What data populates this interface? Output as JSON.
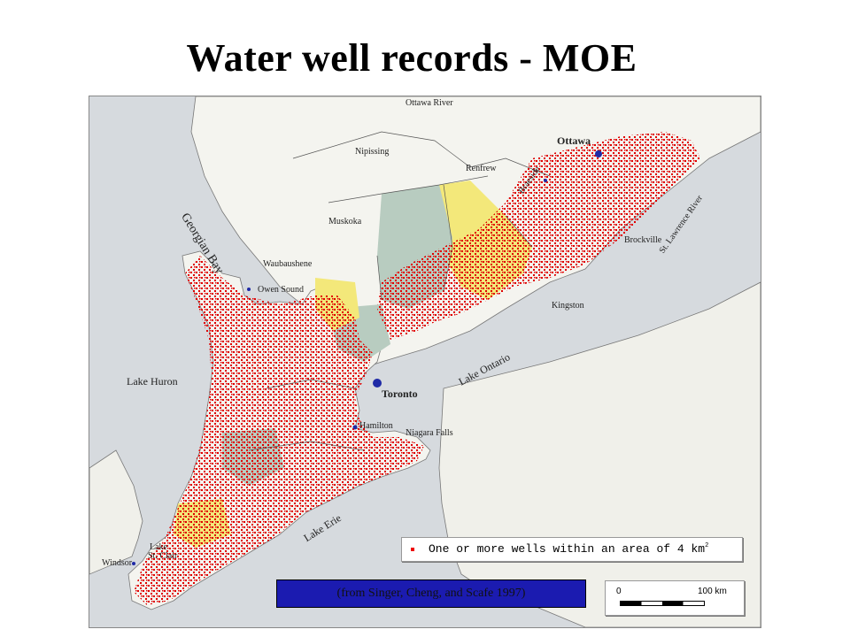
{
  "title": "Water well records - MOE",
  "map": {
    "water_labels": {
      "lake_huron": "Lake Huron",
      "georgian_bay": "Georgian Bay",
      "lake_ontario": "Lake Ontario",
      "lake_erie": "Lake Erie",
      "lake_st_clair_1": "Lake",
      "lake_st_clair_2": "St. Clair",
      "ottawa_river": "Ottawa River",
      "st_lawrence_river": "St. Lawrence River"
    },
    "region_labels": {
      "nipissing": "Nipissing",
      "renfrew": "Renfrew",
      "muskoka": "Muskoka"
    },
    "city_labels": {
      "ottawa": "Ottawa",
      "toronto": "Toronto",
      "hamilton": "Hamilton",
      "niagara_falls": "Niagara Falls",
      "kingston": "Kingston",
      "brockville": "Brockville",
      "braeside": "Braeside",
      "owen_sound": "Owen Sound",
      "waubaushene": "Waubaushene",
      "windsor": "Windsor"
    },
    "legend": {
      "text": "One or more wells within an area of 4 km",
      "superscript": "2",
      "marker_color": "#e00000"
    },
    "scale": {
      "start": "0",
      "end": "100 km"
    },
    "colors": {
      "water": "#d6dade",
      "land": "#f4f4ef",
      "yellow_area": "#f3e87a",
      "green_area": "#b8ccc0",
      "well_dot": "#e00000",
      "city_marker": "#1f2aa6"
    }
  },
  "citation": "(from Singer, Cheng, and Scafe 1997)"
}
